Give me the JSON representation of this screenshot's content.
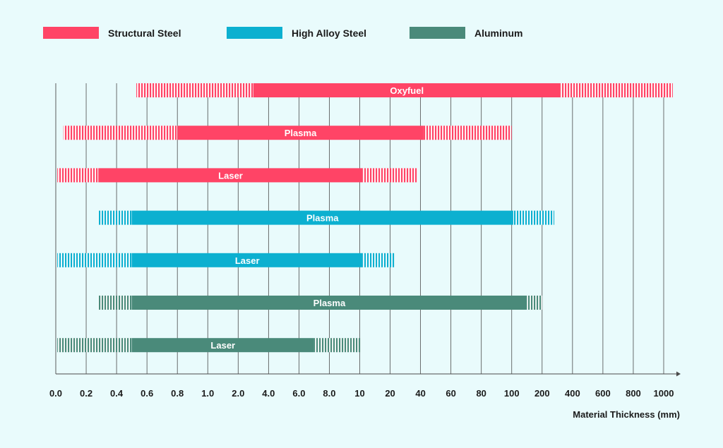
{
  "chart_data": {
    "type": "bar",
    "orientation": "horizontal-range",
    "xlabel": "Material Thickness (mm)",
    "x_ticks": [
      "0.0",
      "0.2",
      "0.4",
      "0.6",
      "0.8",
      "1.0",
      "2.0",
      "4.0",
      "6.0",
      "8.0",
      "10",
      "20",
      "40",
      "60",
      "80",
      "100",
      "200",
      "400",
      "600",
      "800",
      "1000"
    ],
    "grid": "vertical",
    "legend_position": "top-left",
    "series": [
      {
        "name": "Structural Steel",
        "color": "#ff4466"
      },
      {
        "name": "High Alloy Steel",
        "color": "#0cb0d0"
      },
      {
        "name": "Aluminum",
        "color": "#4a8a7a"
      }
    ],
    "bars": [
      {
        "label": "Oxyfuel",
        "series": "Structural Steel",
        "range_start": "0.53",
        "solid_start": "3.0",
        "solid_end": "320",
        "range_end": "1060"
      },
      {
        "label": "Plasma",
        "series": "Structural Steel",
        "range_start": "0.05",
        "solid_start": "0.8",
        "solid_end": "42",
        "range_end": "100"
      },
      {
        "label": "Laser",
        "series": "Structural Steel",
        "range_start": "0.01",
        "solid_start": "0.28",
        "solid_end": "11",
        "range_end": "38"
      },
      {
        "label": "Plasma",
        "series": "High Alloy Steel",
        "range_start": "0.28",
        "solid_start": "0.5",
        "solid_end": "105",
        "range_end": "280"
      },
      {
        "label": "Laser",
        "series": "High Alloy Steel",
        "range_start": "0.01",
        "solid_start": "0.5",
        "solid_end": "11",
        "range_end": "23"
      },
      {
        "label": "Plasma",
        "series": "Aluminum",
        "range_start": "0.28",
        "solid_start": "0.5",
        "solid_end": "150",
        "range_end": "200"
      },
      {
        "label": "Laser",
        "series": "Aluminum",
        "range_start": "0.01",
        "solid_start": "0.5",
        "solid_end": "7.0",
        "range_end": "10.3"
      }
    ]
  }
}
